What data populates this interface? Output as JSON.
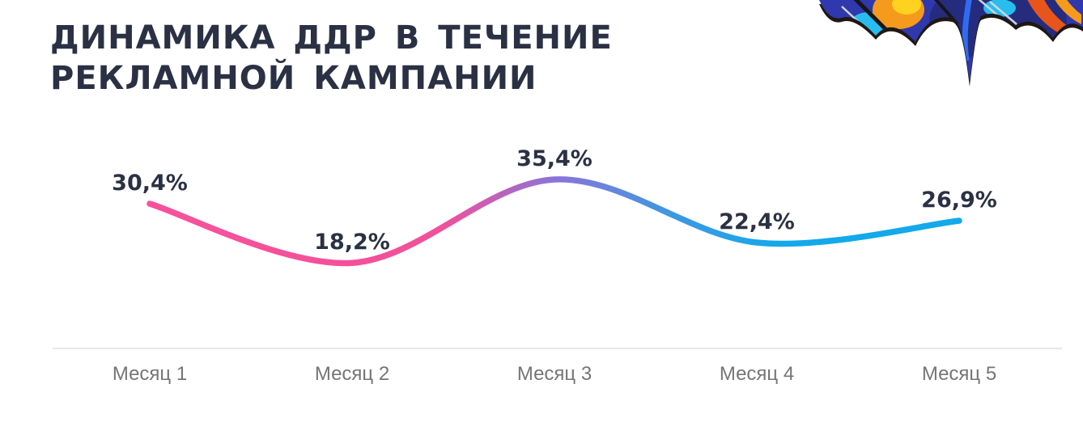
{
  "page": {
    "background": "#ffffff"
  },
  "header": {
    "title_line1": "ДИНАМИКА ДДР В ТЕЧЕНИЕ",
    "title_line2": "РЕКЛАМНОЙ КАМПАНИИ",
    "title_color": "#2b3144"
  },
  "decoration": {
    "name": "bat-shaped-graffiti-artwork",
    "palette": {
      "edge": "#201712",
      "base_blue": "#2f38ac",
      "navy": "#252c7e",
      "cyan": "#27bdee",
      "orange": "#f59a1c",
      "yellow": "#ffd21f",
      "red_orange": "#e8551b",
      "black_line": "#16161a",
      "light_line": "#ccd4dc",
      "bright_blue": "#2f6cf0"
    }
  },
  "chart_data": {
    "type": "line",
    "title": "ДИНАМИКА ДДР В ТЕЧЕНИЕ РЕКЛАМНОЙ КАМПАНИИ",
    "categories": [
      "Месяц 1",
      "Месяц 2",
      "Месяц 3",
      "Месяц 4",
      "Месяц 5"
    ],
    "values": [
      30.4,
      18.2,
      35.4,
      22.4,
      26.9
    ],
    "value_labels": [
      "30,4%",
      "18,2%",
      "35,4%",
      "22,4%",
      "26,9%"
    ],
    "unit": "%",
    "smooth": true,
    "grid": false,
    "legend": false,
    "y_axis_visible": false,
    "label_color": "#2b3144",
    "axis": {
      "tick_label_color": "#757575",
      "baseline_color": "#e7e7e7"
    },
    "line_gradient": [
      {
        "offset": 0,
        "color": "#f8519b"
      },
      {
        "offset": 0.36,
        "color": "#f2509a"
      },
      {
        "offset": 0.5,
        "color": "#8b74d8"
      },
      {
        "offset": 0.64,
        "color": "#3f97e2"
      },
      {
        "offset": 0.78,
        "color": "#13a9ea"
      },
      {
        "offset": 1,
        "color": "#13a9ea"
      }
    ]
  }
}
